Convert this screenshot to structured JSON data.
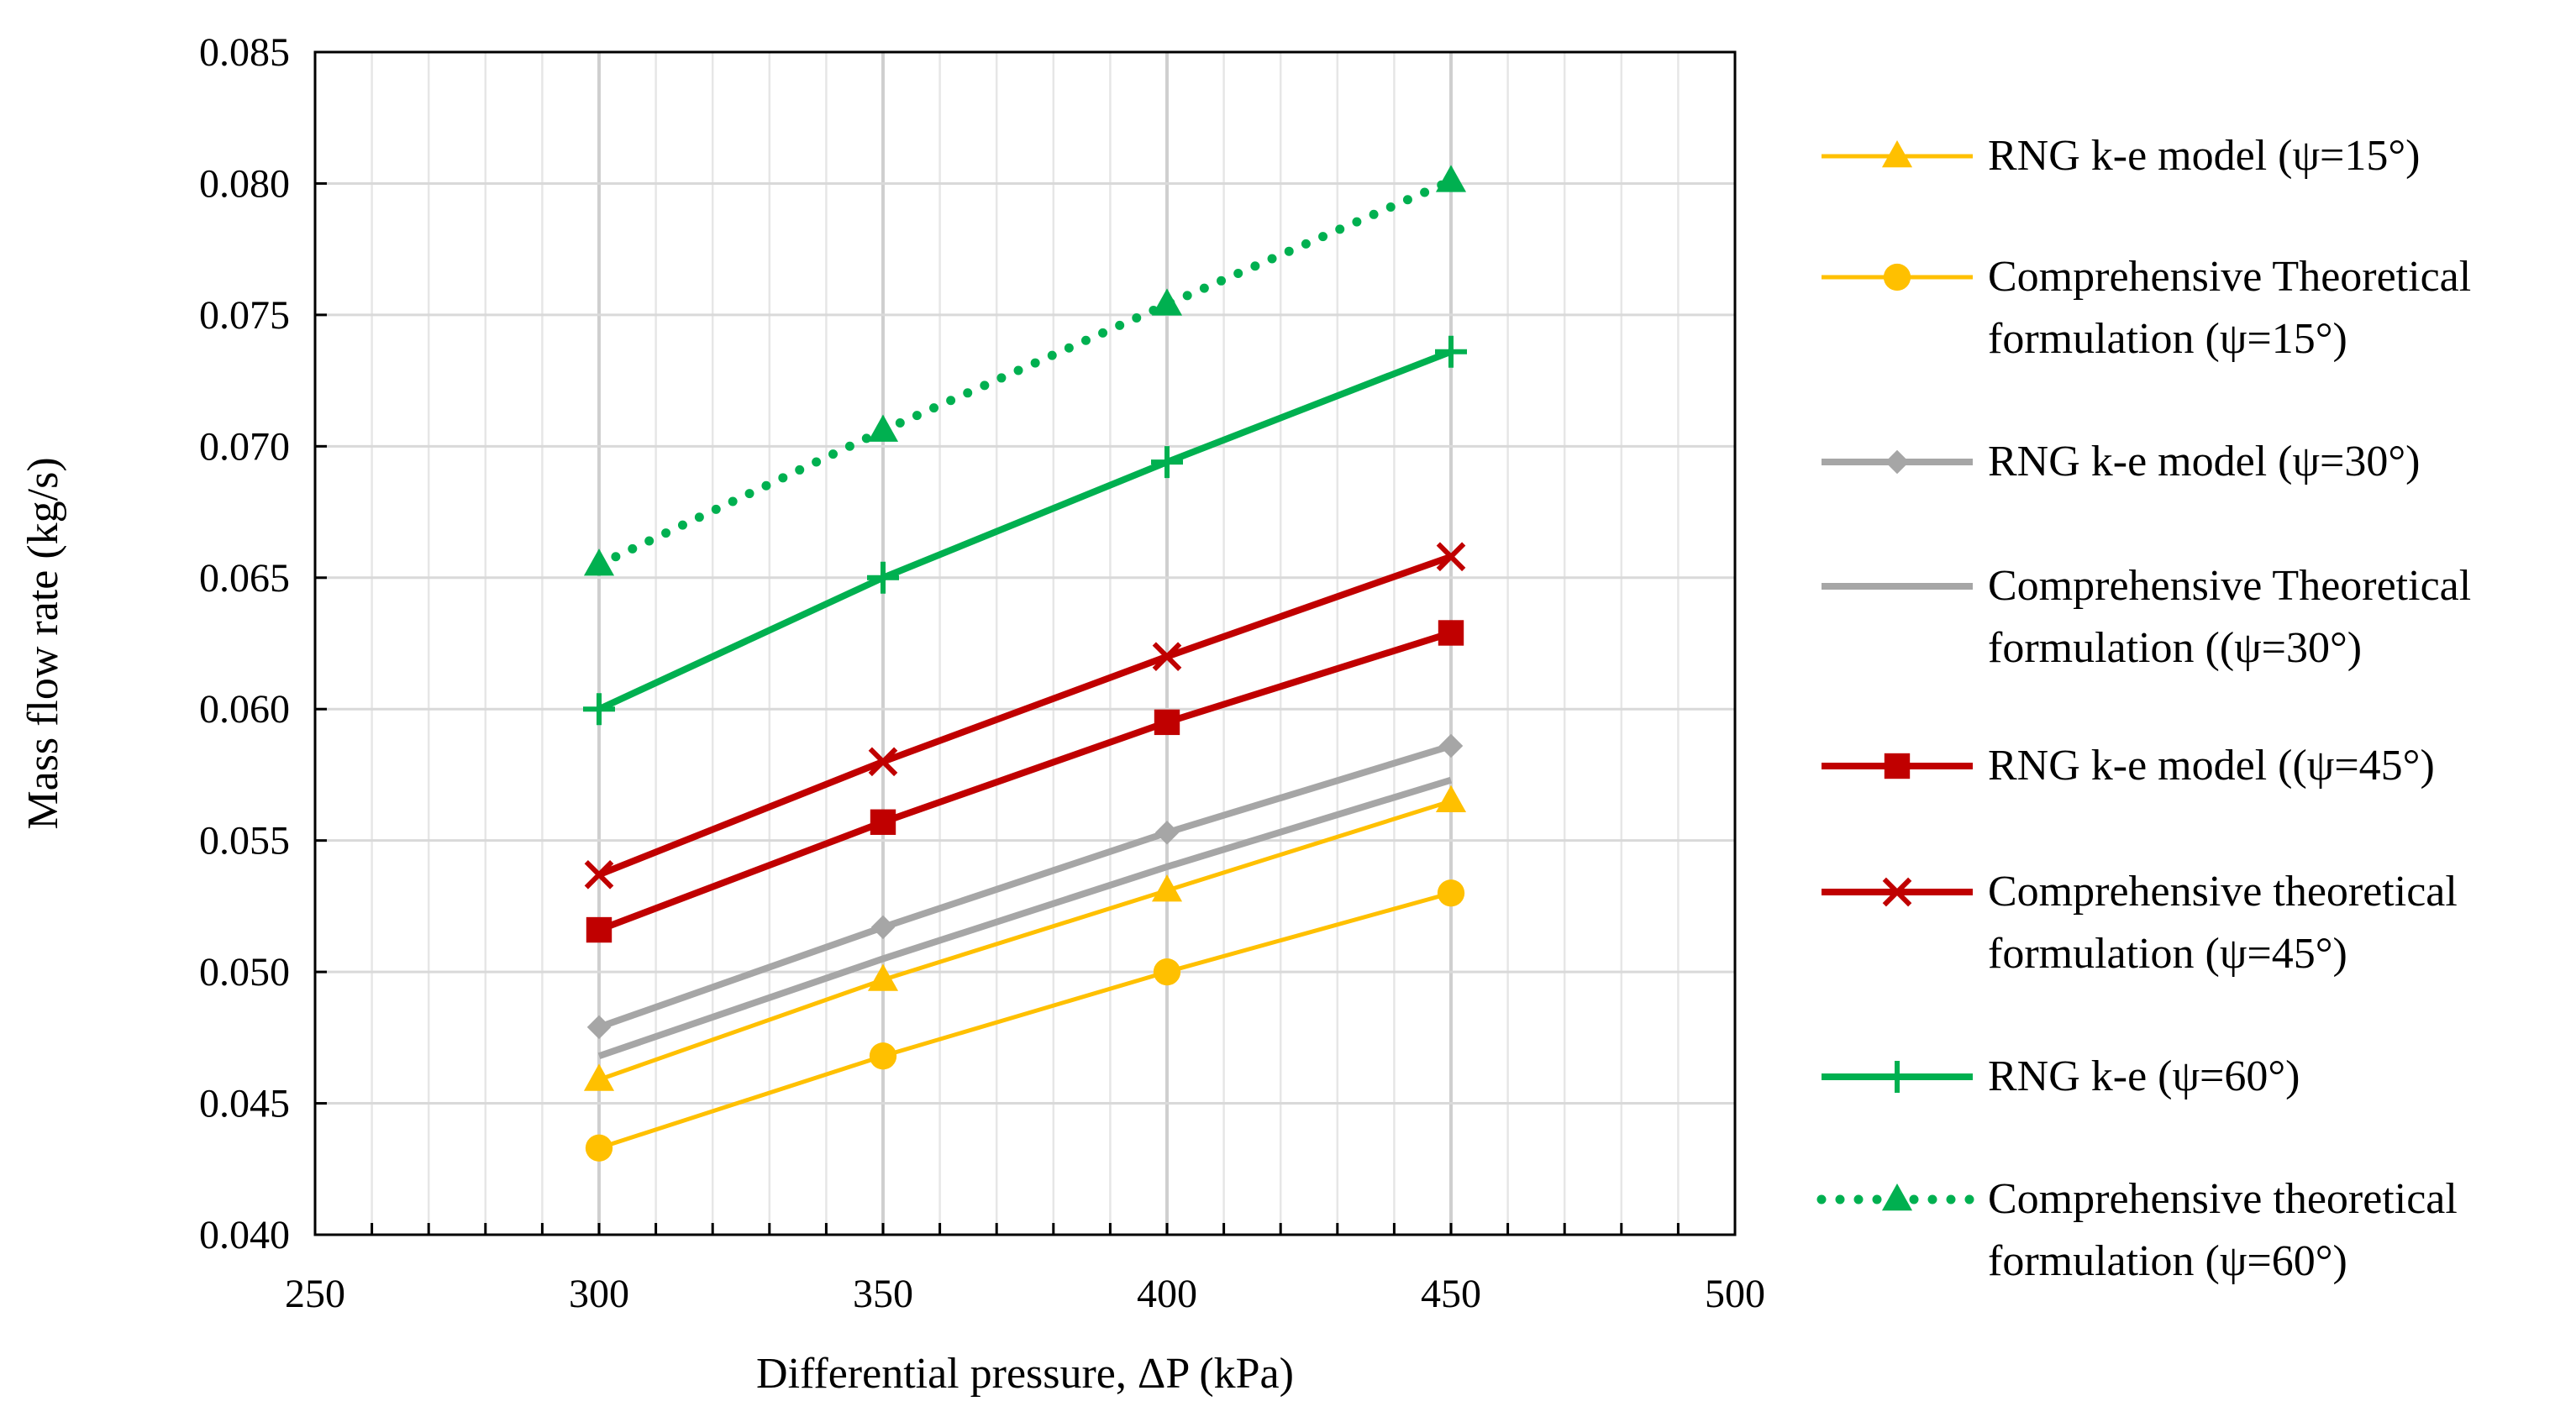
{
  "chart_data": {
    "type": "line",
    "title": "",
    "xlabel": "Differential pressure, ΔP (kPa)",
    "ylabel": "Mass flow rate (kg/s)",
    "xlim": [
      250,
      500
    ],
    "ylim": [
      0.04,
      0.085
    ],
    "x_major_ticks": [
      250,
      300,
      350,
      400,
      450,
      500
    ],
    "y_major_ticks": [
      0.04,
      0.045,
      0.05,
      0.055,
      0.06,
      0.065,
      0.07,
      0.075,
      0.08,
      0.085
    ],
    "x_tick_labels": [
      "250",
      "300",
      "350",
      "400",
      "450",
      "500"
    ],
    "y_tick_labels": [
      "0.040",
      "0.045",
      "0.050",
      "0.055",
      "0.060",
      "0.065",
      "0.070",
      "0.075",
      "0.080",
      "0.085"
    ],
    "grid": true,
    "legend_position": "right",
    "series": [
      {
        "name": "RNG k-e model (ψ=15°)",
        "legend_lines": [
          " RNG k-e model (ψ=15°)"
        ],
        "color": "#FFC000",
        "marker": "triangle",
        "dash": "solid",
        "width": "thin",
        "x": [
          300,
          350,
          400,
          450
        ],
        "y": [
          0.0459,
          0.0497,
          0.0531,
          0.0565
        ]
      },
      {
        "name": "Comprehensive Theoretical formulation (ψ=15°)",
        "legend_lines": [
          "Comprehensive Theoretical",
          "formulation (ψ=15°)"
        ],
        "color": "#FFC000",
        "marker": "circle",
        "dash": "solid",
        "width": "thin",
        "x": [
          300,
          350,
          400,
          450
        ],
        "y": [
          0.0433,
          0.0468,
          0.05,
          0.053
        ]
      },
      {
        "name": "RNG k-e model (ψ=30°)",
        "legend_lines": [
          "RNG k-e model (ψ=30°)"
        ],
        "color": "#A6A6A6",
        "marker": "diamond",
        "dash": "solid",
        "width": "thick",
        "x": [
          300,
          350,
          400,
          450
        ],
        "y": [
          0.0479,
          0.0517,
          0.0553,
          0.0586
        ]
      },
      {
        "name": "Comprehensive Theoretical formulation ((ψ=30°)",
        "legend_lines": [
          "Comprehensive Theoretical",
          "formulation ((ψ=30°)"
        ],
        "color": "#A6A6A6",
        "marker": "none",
        "dash": "solid",
        "width": "thick",
        "x": [
          300,
          350,
          400,
          450
        ],
        "y": [
          0.0468,
          0.0505,
          0.054,
          0.0573
        ]
      },
      {
        "name": "RNG k-e model ((ψ=45°)",
        "legend_lines": [
          "RNG k-e model ((ψ=45°)"
        ],
        "color": "#C00000",
        "marker": "square",
        "dash": "solid",
        "width": "thick",
        "x": [
          300,
          350,
          400,
          450
        ],
        "y": [
          0.0516,
          0.0557,
          0.0595,
          0.0629
        ]
      },
      {
        "name": "Comprehensive theoretical formulation (ψ=45°)",
        "legend_lines": [
          "Comprehensive theoretical",
          "formulation (ψ=45°)"
        ],
        "color": "#C00000",
        "marker": "x",
        "dash": "solid",
        "width": "thick",
        "x": [
          300,
          350,
          400,
          450
        ],
        "y": [
          0.0537,
          0.058,
          0.062,
          0.0658
        ]
      },
      {
        "name": "RNG k-e (ψ=60°)",
        "legend_lines": [
          "RNG k-e (ψ=60°)"
        ],
        "color": "#00B050",
        "marker": "plus",
        "dash": "solid",
        "width": "thick",
        "x": [
          300,
          350,
          400,
          450
        ],
        "y": [
          0.06,
          0.065,
          0.0694,
          0.0736
        ]
      },
      {
        "name": "Comprehensive theoretical formulation (ψ=60°)",
        "legend_lines": [
          "Comprehensive theoretical",
          "formulation (ψ=60°)"
        ],
        "color": "#00B050",
        "marker": "triangle",
        "dash": "dotted",
        "width": "thick",
        "x": [
          300,
          350,
          400,
          450
        ],
        "y": [
          0.0655,
          0.0706,
          0.0754,
          0.0801
        ]
      }
    ]
  }
}
